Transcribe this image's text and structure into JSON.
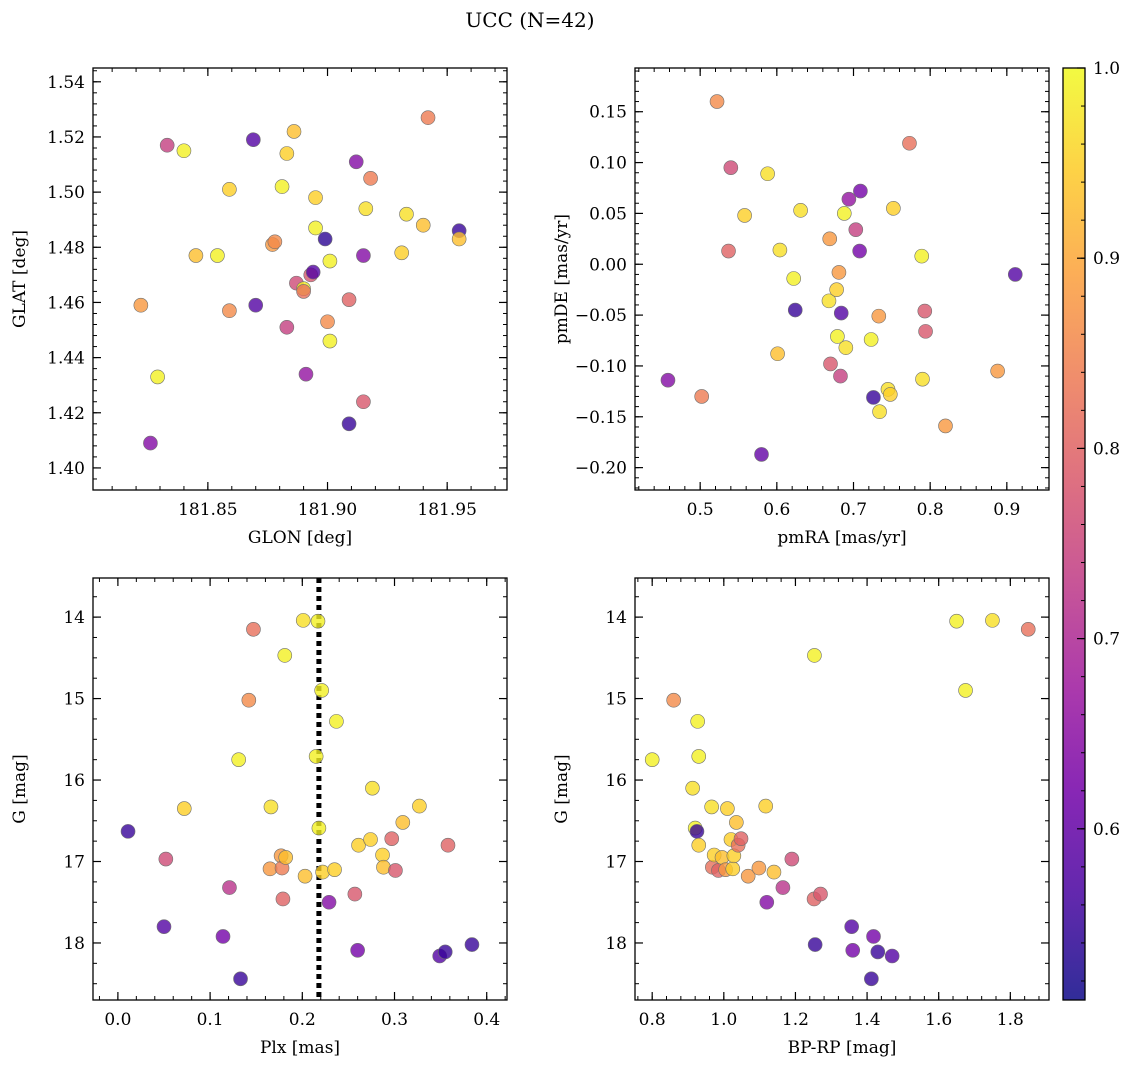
{
  "title": "UCC (N=42)",
  "colormap": {
    "name": "plasma",
    "range": [
      0.51,
      1.0
    ],
    "ticks": [
      0.6,
      0.7,
      0.8,
      0.9,
      1.0
    ],
    "tick_labels": [
      "0.6",
      "0.7",
      "0.8",
      "0.9",
      "1.0"
    ],
    "stops": [
      "#0d0887",
      "#46039f",
      "#7201a8",
      "#9c179e",
      "#bd3786",
      "#d8576b",
      "#ed7953",
      "#fb9f3a",
      "#fdca26",
      "#f0f921"
    ]
  },
  "chart_data": [
    {
      "type": "scatter",
      "xlabel": "GLON [deg]",
      "ylabel": "GLAT [deg]",
      "xlim": [
        181.802,
        181.975
      ],
      "ylim": [
        1.392,
        1.545
      ],
      "xticks": [
        181.85,
        181.9,
        181.95
      ],
      "xtick_labels": [
        "181.85",
        "181.90",
        "181.95"
      ],
      "yticks": [
        1.4,
        1.42,
        1.44,
        1.46,
        1.48,
        1.5,
        1.52,
        1.54
      ],
      "ytick_labels": [
        "1.40",
        "1.42",
        "1.44",
        "1.46",
        "1.48",
        "1.50",
        "1.52",
        "1.54"
      ],
      "points": [
        {
          "x": 181.826,
          "y": 1.409,
          "c": 0.64
        },
        {
          "x": 181.822,
          "y": 1.459,
          "c": 0.88
        },
        {
          "x": 181.829,
          "y": 1.433,
          "c": 0.99
        },
        {
          "x": 181.833,
          "y": 1.517,
          "c": 0.74
        },
        {
          "x": 181.84,
          "y": 1.515,
          "c": 0.99
        },
        {
          "x": 181.845,
          "y": 1.477,
          "c": 0.93
        },
        {
          "x": 181.854,
          "y": 1.477,
          "c": 0.99
        },
        {
          "x": 181.859,
          "y": 1.501,
          "c": 0.95
        },
        {
          "x": 181.859,
          "y": 1.457,
          "c": 0.86
        },
        {
          "x": 181.869,
          "y": 1.519,
          "c": 0.58
        },
        {
          "x": 181.87,
          "y": 1.459,
          "c": 0.58
        },
        {
          "x": 181.877,
          "y": 1.481,
          "c": 0.88
        },
        {
          "x": 181.878,
          "y": 1.482,
          "c": 0.86
        },
        {
          "x": 181.881,
          "y": 1.502,
          "c": 0.99
        },
        {
          "x": 181.883,
          "y": 1.514,
          "c": 0.95
        },
        {
          "x": 181.883,
          "y": 1.451,
          "c": 0.74
        },
        {
          "x": 181.886,
          "y": 1.522,
          "c": 0.93
        },
        {
          "x": 181.887,
          "y": 1.467,
          "c": 0.76
        },
        {
          "x": 181.89,
          "y": 1.465,
          "c": 0.99
        },
        {
          "x": 181.89,
          "y": 1.464,
          "c": 0.82
        },
        {
          "x": 181.891,
          "y": 1.434,
          "c": 0.66
        },
        {
          "x": 181.893,
          "y": 1.47,
          "c": 0.78
        },
        {
          "x": 181.894,
          "y": 1.471,
          "c": 0.58
        },
        {
          "x": 181.895,
          "y": 1.498,
          "c": 0.95
        },
        {
          "x": 181.895,
          "y": 1.487,
          "c": 0.99
        },
        {
          "x": 181.899,
          "y": 1.483,
          "c": 0.54
        },
        {
          "x": 181.9,
          "y": 1.453,
          "c": 0.86
        },
        {
          "x": 181.901,
          "y": 1.446,
          "c": 0.99
        },
        {
          "x": 181.901,
          "y": 1.475,
          "c": 0.99
        },
        {
          "x": 181.909,
          "y": 1.416,
          "c": 0.55
        },
        {
          "x": 181.909,
          "y": 1.461,
          "c": 0.8
        },
        {
          "x": 181.912,
          "y": 1.511,
          "c": 0.64
        },
        {
          "x": 181.915,
          "y": 1.477,
          "c": 0.64
        },
        {
          "x": 181.915,
          "y": 1.424,
          "c": 0.78
        },
        {
          "x": 181.916,
          "y": 1.494,
          "c": 0.97
        },
        {
          "x": 181.918,
          "y": 1.505,
          "c": 0.84
        },
        {
          "x": 181.931,
          "y": 1.478,
          "c": 0.95
        },
        {
          "x": 181.933,
          "y": 1.492,
          "c": 0.97
        },
        {
          "x": 181.94,
          "y": 1.488,
          "c": 0.93
        },
        {
          "x": 181.942,
          "y": 1.527,
          "c": 0.84
        },
        {
          "x": 181.955,
          "y": 1.486,
          "c": 0.55
        },
        {
          "x": 181.955,
          "y": 1.483,
          "c": 0.93
        }
      ]
    },
    {
      "type": "scatter",
      "xlabel": "pmRA [mas/yr]",
      "ylabel": "pmDE [mas/yr]",
      "xlim": [
        0.415,
        0.955
      ],
      "ylim": [
        -0.222,
        0.193
      ],
      "xticks": [
        0.5,
        0.6,
        0.7,
        0.8,
        0.9
      ],
      "xtick_labels": [
        "0.5",
        "0.6",
        "0.7",
        "0.8",
        "0.9"
      ],
      "yticks": [
        -0.2,
        -0.15,
        -0.1,
        -0.05,
        0.0,
        0.05,
        0.1,
        0.15
      ],
      "ytick_labels": [
        "−0.20",
        "−0.15",
        "−0.10",
        "−0.05",
        "0.00",
        "0.05",
        "0.10",
        "0.15"
      ],
      "points": [
        {
          "x": 0.458,
          "y": -0.114,
          "c": 0.64
        },
        {
          "x": 0.502,
          "y": -0.13,
          "c": 0.84
        },
        {
          "x": 0.522,
          "y": 0.16,
          "c": 0.86
        },
        {
          "x": 0.537,
          "y": 0.013,
          "c": 0.8
        },
        {
          "x": 0.54,
          "y": 0.095,
          "c": 0.76
        },
        {
          "x": 0.558,
          "y": 0.048,
          "c": 0.95
        },
        {
          "x": 0.58,
          "y": -0.187,
          "c": 0.6
        },
        {
          "x": 0.588,
          "y": 0.089,
          "c": 0.97
        },
        {
          "x": 0.601,
          "y": -0.088,
          "c": 0.93
        },
        {
          "x": 0.604,
          "y": 0.014,
          "c": 0.97
        },
        {
          "x": 0.622,
          "y": -0.014,
          "c": 0.99
        },
        {
          "x": 0.624,
          "y": -0.045,
          "c": 0.55
        },
        {
          "x": 0.631,
          "y": 0.053,
          "c": 0.97
        },
        {
          "x": 0.668,
          "y": -0.036,
          "c": 0.97
        },
        {
          "x": 0.669,
          "y": 0.025,
          "c": 0.88
        },
        {
          "x": 0.67,
          "y": -0.098,
          "c": 0.78
        },
        {
          "x": 0.678,
          "y": -0.025,
          "c": 0.95
        },
        {
          "x": 0.679,
          "y": -0.071,
          "c": 0.99
        },
        {
          "x": 0.681,
          "y": -0.008,
          "c": 0.88
        },
        {
          "x": 0.683,
          "y": -0.11,
          "c": 0.74
        },
        {
          "x": 0.684,
          "y": -0.048,
          "c": 0.58
        },
        {
          "x": 0.688,
          "y": 0.05,
          "c": 0.99
        },
        {
          "x": 0.69,
          "y": -0.082,
          "c": 0.97
        },
        {
          "x": 0.694,
          "y": 0.064,
          "c": 0.66
        },
        {
          "x": 0.703,
          "y": 0.034,
          "c": 0.74
        },
        {
          "x": 0.708,
          "y": 0.013,
          "c": 0.62
        },
        {
          "x": 0.709,
          "y": 0.072,
          "c": 0.62
        },
        {
          "x": 0.723,
          "y": -0.074,
          "c": 0.99
        },
        {
          "x": 0.726,
          "y": -0.131,
          "c": 0.55
        },
        {
          "x": 0.733,
          "y": -0.051,
          "c": 0.88
        },
        {
          "x": 0.734,
          "y": -0.145,
          "c": 0.97
        },
        {
          "x": 0.745,
          "y": -0.123,
          "c": 0.97
        },
        {
          "x": 0.748,
          "y": -0.128,
          "c": 0.95
        },
        {
          "x": 0.752,
          "y": 0.055,
          "c": 0.95
        },
        {
          "x": 0.773,
          "y": 0.119,
          "c": 0.82
        },
        {
          "x": 0.789,
          "y": 0.008,
          "c": 0.99
        },
        {
          "x": 0.79,
          "y": -0.113,
          "c": 0.97
        },
        {
          "x": 0.793,
          "y": -0.046,
          "c": 0.78
        },
        {
          "x": 0.794,
          "y": -0.066,
          "c": 0.78
        },
        {
          "x": 0.82,
          "y": -0.159,
          "c": 0.88
        },
        {
          "x": 0.888,
          "y": -0.105,
          "c": 0.88
        },
        {
          "x": 0.911,
          "y": -0.01,
          "c": 0.58
        }
      ]
    },
    {
      "type": "scatter",
      "xlabel": "Plx [mas]",
      "ylabel": "G [mag]",
      "xlim": [
        -0.027,
        0.422
      ],
      "ylim": [
        18.7,
        13.52
      ],
      "y_inverted": true,
      "xticks": [
        0.0,
        0.1,
        0.2,
        0.3,
        0.4
      ],
      "xtick_labels": [
        "0.0",
        "0.1",
        "0.2",
        "0.3",
        "0.4"
      ],
      "yticks": [
        14,
        15,
        16,
        17,
        18
      ],
      "ytick_labels": [
        "14",
        "15",
        "16",
        "17",
        "18"
      ],
      "vline": {
        "x": 0.218,
        "style": "dotted",
        "color": "#000000"
      },
      "points": [
        {
          "x": 0.011,
          "y": 16.63,
          "c": 0.55
        },
        {
          "x": 0.05,
          "y": 17.8,
          "c": 0.58
        },
        {
          "x": 0.052,
          "y": 16.97,
          "c": 0.76
        },
        {
          "x": 0.072,
          "y": 16.35,
          "c": 0.95
        },
        {
          "x": 0.114,
          "y": 17.92,
          "c": 0.62
        },
        {
          "x": 0.121,
          "y": 17.32,
          "c": 0.72
        },
        {
          "x": 0.131,
          "y": 15.75,
          "c": 0.99
        },
        {
          "x": 0.133,
          "y": 18.44,
          "c": 0.55
        },
        {
          "x": 0.142,
          "y": 15.02,
          "c": 0.86
        },
        {
          "x": 0.147,
          "y": 14.15,
          "c": 0.82
        },
        {
          "x": 0.165,
          "y": 17.09,
          "c": 0.88
        },
        {
          "x": 0.166,
          "y": 16.33,
          "c": 0.97
        },
        {
          "x": 0.177,
          "y": 16.93,
          "c": 0.88
        },
        {
          "x": 0.178,
          "y": 17.08,
          "c": 0.84
        },
        {
          "x": 0.179,
          "y": 17.46,
          "c": 0.8
        },
        {
          "x": 0.181,
          "y": 14.47,
          "c": 0.99
        },
        {
          "x": 0.182,
          "y": 16.95,
          "c": 0.93
        },
        {
          "x": 0.201,
          "y": 14.04,
          "c": 0.97
        },
        {
          "x": 0.203,
          "y": 17.18,
          "c": 0.93
        },
        {
          "x": 0.215,
          "y": 15.71,
          "c": 0.99
        },
        {
          "x": 0.217,
          "y": 14.05,
          "c": 0.99
        },
        {
          "x": 0.218,
          "y": 16.59,
          "c": 0.99
        },
        {
          "x": 0.221,
          "y": 14.9,
          "c": 0.99
        },
        {
          "x": 0.222,
          "y": 17.13,
          "c": 0.95
        },
        {
          "x": 0.229,
          "y": 17.5,
          "c": 0.64
        },
        {
          "x": 0.235,
          "y": 17.1,
          "c": 0.95
        },
        {
          "x": 0.237,
          "y": 15.28,
          "c": 0.99
        },
        {
          "x": 0.257,
          "y": 17.4,
          "c": 0.78
        },
        {
          "x": 0.26,
          "y": 18.09,
          "c": 0.62
        },
        {
          "x": 0.261,
          "y": 16.8,
          "c": 0.95
        },
        {
          "x": 0.274,
          "y": 16.73,
          "c": 0.95
        },
        {
          "x": 0.276,
          "y": 16.1,
          "c": 0.97
        },
        {
          "x": 0.287,
          "y": 16.92,
          "c": 0.95
        },
        {
          "x": 0.288,
          "y": 17.07,
          "c": 0.93
        },
        {
          "x": 0.297,
          "y": 16.72,
          "c": 0.8
        },
        {
          "x": 0.301,
          "y": 17.11,
          "c": 0.78
        },
        {
          "x": 0.309,
          "y": 16.52,
          "c": 0.93
        },
        {
          "x": 0.327,
          "y": 16.32,
          "c": 0.95
        },
        {
          "x": 0.349,
          "y": 18.16,
          "c": 0.58
        },
        {
          "x": 0.355,
          "y": 18.11,
          "c": 0.55
        },
        {
          "x": 0.358,
          "y": 16.8,
          "c": 0.8
        },
        {
          "x": 0.384,
          "y": 18.02,
          "c": 0.55
        }
      ]
    },
    {
      "type": "scatter",
      "xlabel": "BP-RP [mag]",
      "ylabel": "G [mag]",
      "xlim": [
        0.752,
        1.908
      ],
      "ylim": [
        18.7,
        13.52
      ],
      "y_inverted": true,
      "xticks": [
        0.8,
        1.0,
        1.2,
        1.4,
        1.6,
        1.8
      ],
      "xtick_labels": [
        "0.8",
        "1.0",
        "1.2",
        "1.4",
        "1.6",
        "1.8"
      ],
      "yticks": [
        14,
        15,
        16,
        17,
        18
      ],
      "ytick_labels": [
        "14",
        "15",
        "16",
        "17",
        "18"
      ],
      "points": [
        {
          "x": 0.8,
          "y": 15.75,
          "c": 0.99
        },
        {
          "x": 0.86,
          "y": 15.02,
          "c": 0.86
        },
        {
          "x": 0.913,
          "y": 16.1,
          "c": 0.97
        },
        {
          "x": 0.92,
          "y": 16.59,
          "c": 0.99
        },
        {
          "x": 0.925,
          "y": 16.63,
          "c": 0.55
        },
        {
          "x": 0.927,
          "y": 15.28,
          "c": 0.99
        },
        {
          "x": 0.93,
          "y": 15.71,
          "c": 0.99
        },
        {
          "x": 0.93,
          "y": 16.8,
          "c": 0.95
        },
        {
          "x": 0.966,
          "y": 16.33,
          "c": 0.97
        },
        {
          "x": 0.968,
          "y": 17.07,
          "c": 0.82
        },
        {
          "x": 0.973,
          "y": 16.92,
          "c": 0.95
        },
        {
          "x": 0.985,
          "y": 17.11,
          "c": 0.8
        },
        {
          "x": 0.995,
          "y": 16.95,
          "c": 0.93
        },
        {
          "x": 1.005,
          "y": 17.1,
          "c": 0.88
        },
        {
          "x": 1.01,
          "y": 16.35,
          "c": 0.95
        },
        {
          "x": 1.02,
          "y": 16.73,
          "c": 0.95
        },
        {
          "x": 1.025,
          "y": 17.09,
          "c": 0.95
        },
        {
          "x": 1.028,
          "y": 16.93,
          "c": 0.95
        },
        {
          "x": 1.035,
          "y": 16.52,
          "c": 0.93
        },
        {
          "x": 1.04,
          "y": 16.8,
          "c": 0.82
        },
        {
          "x": 1.048,
          "y": 16.72,
          "c": 0.8
        },
        {
          "x": 1.068,
          "y": 17.18,
          "c": 0.88
        },
        {
          "x": 1.098,
          "y": 17.08,
          "c": 0.88
        },
        {
          "x": 1.117,
          "y": 16.32,
          "c": 0.95
        },
        {
          "x": 1.12,
          "y": 17.5,
          "c": 0.64
        },
        {
          "x": 1.14,
          "y": 17.13,
          "c": 0.93
        },
        {
          "x": 1.165,
          "y": 17.32,
          "c": 0.72
        },
        {
          "x": 1.19,
          "y": 16.97,
          "c": 0.76
        },
        {
          "x": 1.252,
          "y": 17.46,
          "c": 0.8
        },
        {
          "x": 1.253,
          "y": 14.47,
          "c": 0.99
        },
        {
          "x": 1.255,
          "y": 18.02,
          "c": 0.55
        },
        {
          "x": 1.27,
          "y": 17.4,
          "c": 0.78
        },
        {
          "x": 1.357,
          "y": 17.8,
          "c": 0.58
        },
        {
          "x": 1.36,
          "y": 18.09,
          "c": 0.62
        },
        {
          "x": 1.412,
          "y": 18.44,
          "c": 0.55
        },
        {
          "x": 1.418,
          "y": 17.92,
          "c": 0.62
        },
        {
          "x": 1.43,
          "y": 18.11,
          "c": 0.55
        },
        {
          "x": 1.47,
          "y": 18.16,
          "c": 0.58
        },
        {
          "x": 1.65,
          "y": 14.05,
          "c": 0.99
        },
        {
          "x": 1.675,
          "y": 14.9,
          "c": 0.99
        },
        {
          "x": 1.75,
          "y": 14.04,
          "c": 0.97
        },
        {
          "x": 1.85,
          "y": 14.15,
          "c": 0.82
        }
      ]
    }
  ]
}
